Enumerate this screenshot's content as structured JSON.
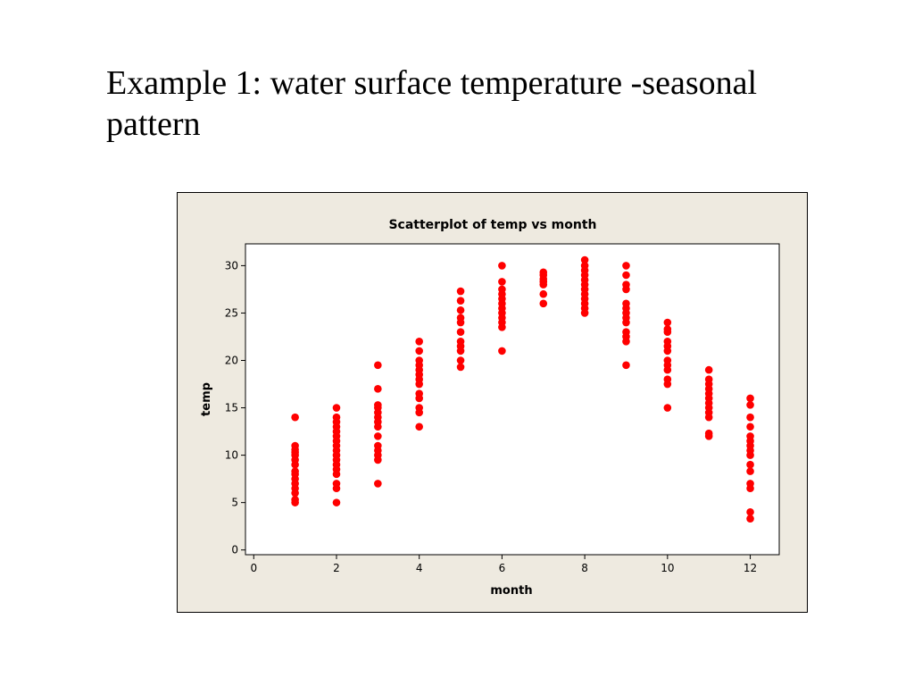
{
  "slide": {
    "title": "Example 1: water surface temperature -seasonal pattern"
  },
  "chart_data": {
    "type": "scatter",
    "title": "Scatterplot of temp vs month",
    "xlabel": "month",
    "ylabel": "temp",
    "xlim": [
      -0.2,
      12.7
    ],
    "ylim": [
      -0.5,
      32.3
    ],
    "xticks": [
      0,
      2,
      4,
      6,
      8,
      10,
      12
    ],
    "yticks": [
      0,
      5,
      10,
      15,
      20,
      25,
      30
    ],
    "grid": false,
    "marker_color": "#ff0000",
    "plot_background": "#ffffff",
    "frame_background": "#eeeae0",
    "series": [
      {
        "points": [
          [
            1,
            5.0
          ],
          [
            1,
            5.3
          ],
          [
            1,
            6.0
          ],
          [
            1,
            6.5
          ],
          [
            1,
            7.0
          ],
          [
            1,
            7.5
          ],
          [
            1,
            8.0
          ],
          [
            1,
            8.3
          ],
          [
            1,
            9.0
          ],
          [
            1,
            9.5
          ],
          [
            1,
            10.0
          ],
          [
            1,
            10.3
          ],
          [
            1,
            10.6
          ],
          [
            1,
            11.0
          ],
          [
            1,
            14.0
          ],
          [
            2,
            5.0
          ],
          [
            2,
            6.5
          ],
          [
            2,
            7.0
          ],
          [
            2,
            8.0
          ],
          [
            2,
            8.5
          ],
          [
            2,
            9.0
          ],
          [
            2,
            9.5
          ],
          [
            2,
            10.0
          ],
          [
            2,
            10.5
          ],
          [
            2,
            11.0
          ],
          [
            2,
            11.5
          ],
          [
            2,
            12.0
          ],
          [
            2,
            12.5
          ],
          [
            2,
            13.0
          ],
          [
            2,
            13.5
          ],
          [
            2,
            14.0
          ],
          [
            2,
            15.0
          ],
          [
            3,
            7.0
          ],
          [
            3,
            9.5
          ],
          [
            3,
            10.0
          ],
          [
            3,
            10.5
          ],
          [
            3,
            11.0
          ],
          [
            3,
            12.0
          ],
          [
            3,
            13.0
          ],
          [
            3,
            13.5
          ],
          [
            3,
            14.0
          ],
          [
            3,
            14.5
          ],
          [
            3,
            15.0
          ],
          [
            3,
            15.3
          ],
          [
            3,
            17.0
          ],
          [
            3,
            19.5
          ],
          [
            4,
            13.0
          ],
          [
            4,
            14.5
          ],
          [
            4,
            15.0
          ],
          [
            4,
            16.0
          ],
          [
            4,
            16.5
          ],
          [
            4,
            17.5
          ],
          [
            4,
            18.0
          ],
          [
            4,
            18.5
          ],
          [
            4,
            19.0
          ],
          [
            4,
            19.5
          ],
          [
            4,
            20.0
          ],
          [
            4,
            21.0
          ],
          [
            4,
            22.0
          ],
          [
            5,
            19.3
          ],
          [
            5,
            20.0
          ],
          [
            5,
            21.0
          ],
          [
            5,
            21.5
          ],
          [
            5,
            22.0
          ],
          [
            5,
            23.0
          ],
          [
            5,
            24.0
          ],
          [
            5,
            24.5
          ],
          [
            5,
            25.3
          ],
          [
            5,
            26.3
          ],
          [
            5,
            27.3
          ],
          [
            6,
            21.0
          ],
          [
            6,
            23.5
          ],
          [
            6,
            24.0
          ],
          [
            6,
            24.5
          ],
          [
            6,
            25.0
          ],
          [
            6,
            25.5
          ],
          [
            6,
            26.0
          ],
          [
            6,
            26.5
          ],
          [
            6,
            27.0
          ],
          [
            6,
            27.5
          ],
          [
            6,
            28.3
          ],
          [
            6,
            30.0
          ],
          [
            7,
            26.0
          ],
          [
            7,
            27.0
          ],
          [
            7,
            28.0
          ],
          [
            7,
            28.3
          ],
          [
            7,
            28.6
          ],
          [
            7,
            29.0
          ],
          [
            7,
            29.3
          ],
          [
            8,
            25.0
          ],
          [
            8,
            25.5
          ],
          [
            8,
            26.0
          ],
          [
            8,
            26.5
          ],
          [
            8,
            27.0
          ],
          [
            8,
            27.5
          ],
          [
            8,
            28.0
          ],
          [
            8,
            28.5
          ],
          [
            8,
            29.0
          ],
          [
            8,
            29.5
          ],
          [
            8,
            30.0
          ],
          [
            8,
            30.6
          ],
          [
            9,
            19.5
          ],
          [
            9,
            22.0
          ],
          [
            9,
            22.5
          ],
          [
            9,
            23.0
          ],
          [
            9,
            24.0
          ],
          [
            9,
            24.5
          ],
          [
            9,
            25.0
          ],
          [
            9,
            25.5
          ],
          [
            9,
            26.0
          ],
          [
            9,
            27.5
          ],
          [
            9,
            28.0
          ],
          [
            9,
            29.0
          ],
          [
            9,
            30.0
          ],
          [
            10,
            15.0
          ],
          [
            10,
            17.5
          ],
          [
            10,
            18.0
          ],
          [
            10,
            19.0
          ],
          [
            10,
            19.5
          ],
          [
            10,
            20.0
          ],
          [
            10,
            21.0
          ],
          [
            10,
            21.5
          ],
          [
            10,
            22.0
          ],
          [
            10,
            23.0
          ],
          [
            10,
            23.3
          ],
          [
            10,
            24.0
          ],
          [
            11,
            12.0
          ],
          [
            11,
            12.3
          ],
          [
            11,
            14.0
          ],
          [
            11,
            14.5
          ],
          [
            11,
            15.0
          ],
          [
            11,
            15.5
          ],
          [
            11,
            16.0
          ],
          [
            11,
            16.5
          ],
          [
            11,
            17.0
          ],
          [
            11,
            17.5
          ],
          [
            11,
            18.0
          ],
          [
            11,
            19.0
          ],
          [
            12,
            3.3
          ],
          [
            12,
            4.0
          ],
          [
            12,
            6.5
          ],
          [
            12,
            7.0
          ],
          [
            12,
            8.3
          ],
          [
            12,
            9.0
          ],
          [
            12,
            10.0
          ],
          [
            12,
            10.5
          ],
          [
            12,
            11.0
          ],
          [
            12,
            11.5
          ],
          [
            12,
            12.0
          ],
          [
            12,
            13.0
          ],
          [
            12,
            14.0
          ],
          [
            12,
            15.3
          ],
          [
            12,
            16.0
          ]
        ]
      }
    ]
  }
}
